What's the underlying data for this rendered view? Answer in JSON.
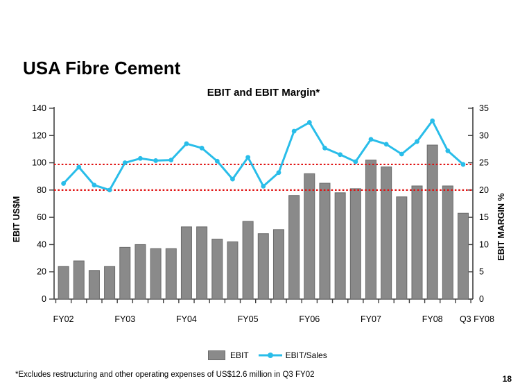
{
  "slide": {
    "title": "USA Fibre Cement",
    "footnote": "*Excludes restructuring and other operating expenses of US$12.6 million in Q3 FY02",
    "page_number": "18"
  },
  "chart_data": {
    "type": "combo-bar-line",
    "title": "EBIT and EBIT Margin*",
    "categories": [
      "Q1 FY02",
      "Q2 FY02",
      "Q3 FY02",
      "Q4 FY02",
      "Q1 FY03",
      "Q2 FY03",
      "Q3 FY03",
      "Q4 FY03",
      "Q1 FY04",
      "Q2 FY04",
      "Q3 FY04",
      "Q4 FY04",
      "Q1 FY05",
      "Q2 FY05",
      "Q3 FY05",
      "Q4 FY05",
      "Q1 FY06",
      "Q2 FY06",
      "Q3 FY06",
      "Q4 FY06",
      "Q1 FY07",
      "Q2 FY07",
      "Q3 FY07",
      "Q4 FY07",
      "Q1 FY08",
      "Q2 FY08",
      "Q3 FY08"
    ],
    "series": [
      {
        "name": "EBIT",
        "type": "bar",
        "axis": "left",
        "color": "#8a8a8a",
        "border_color": "#6a6a6a",
        "values": [
          24,
          28,
          21,
          24,
          38,
          40,
          37,
          37,
          53,
          53,
          44,
          42,
          57,
          48,
          51,
          76,
          92,
          85,
          78,
          81,
          102,
          97,
          75,
          83,
          113,
          83,
          63
        ]
      },
      {
        "name": "EBIT/Sales",
        "type": "line",
        "axis": "right",
        "color": "#29bde9",
        "values": [
          21.2,
          24.2,
          20.9,
          20.0,
          25.0,
          25.8,
          25.4,
          25.5,
          28.5,
          27.7,
          25.3,
          22.0,
          26.0,
          20.7,
          23.2,
          30.8,
          32.4,
          27.7,
          26.5,
          25.2,
          29.3,
          28.4,
          26.6,
          28.9,
          32.7,
          27.2,
          24.7
        ]
      }
    ],
    "left_axis": {
      "title": "EBIT US$M",
      "min": 0,
      "max": 140,
      "step": 20
    },
    "right_axis": {
      "title": "EBIT MARGIN %",
      "min": 0,
      "max": 35,
      "step": 5
    },
    "x_axis_labels": [
      {
        "text": "FY02",
        "slot": 0
      },
      {
        "text": "FY03",
        "slot": 4
      },
      {
        "text": "FY04",
        "slot": 8
      },
      {
        "text": "FY05",
        "slot": 12
      },
      {
        "text": "FY06",
        "slot": 16
      },
      {
        "text": "FY07",
        "slot": 20
      },
      {
        "text": "FY08",
        "slot": 24
      },
      {
        "text": "Q3 FY08",
        "slot": 26.9
      }
    ],
    "reference_lines": [
      {
        "axis": "right",
        "value": 24.7,
        "color": "#e01212",
        "style": "dotted"
      },
      {
        "axis": "right",
        "value": 20.0,
        "color": "#e01212",
        "style": "dotted"
      }
    ],
    "axis_color": "#404040",
    "grid": false,
    "legend_position": "bottom"
  }
}
